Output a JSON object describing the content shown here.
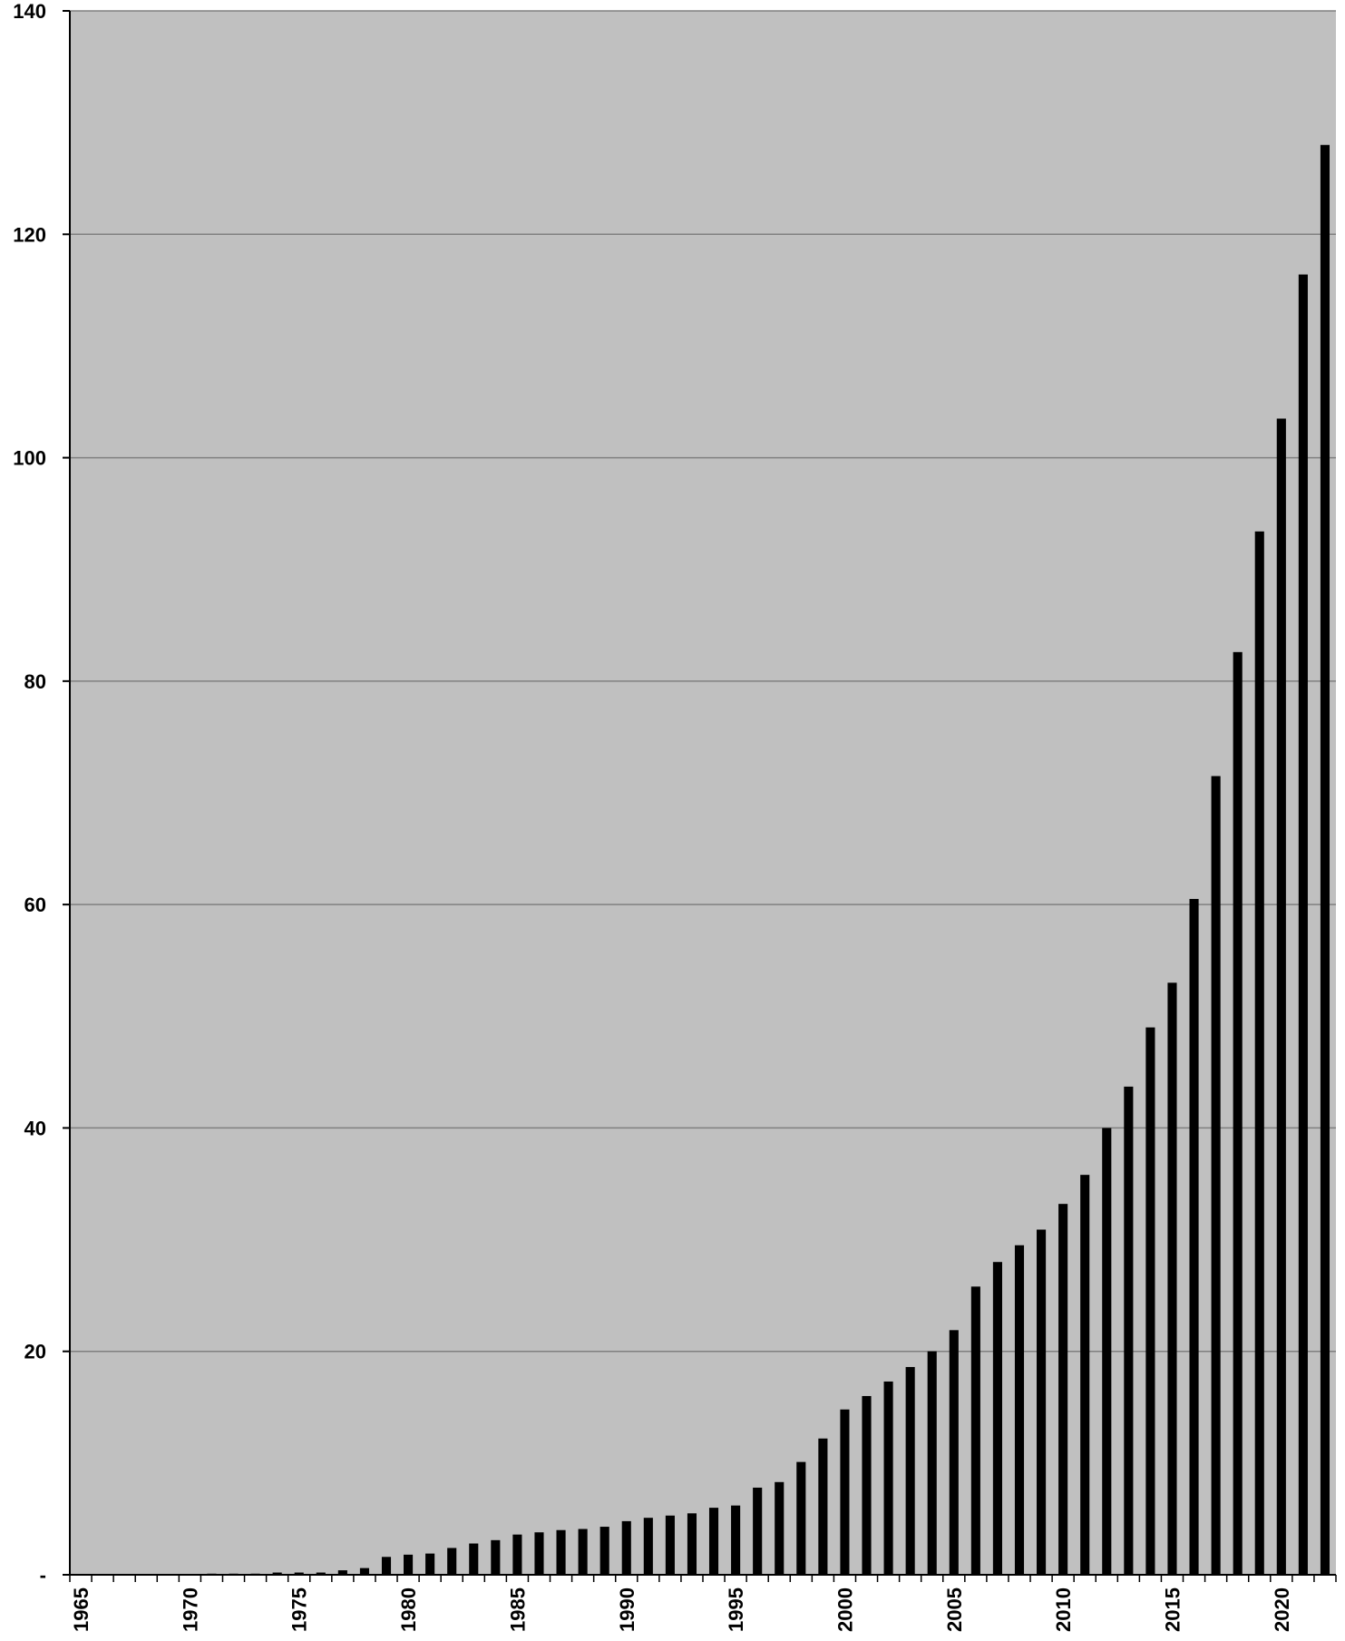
{
  "chart_data": {
    "type": "bar",
    "title": "",
    "xlabel": "",
    "ylabel": "",
    "ylim": [
      0,
      140
    ],
    "yticks": [
      0,
      20,
      40,
      60,
      80,
      100,
      120,
      140
    ],
    "ytick_labels": [
      "-",
      "20",
      "40",
      "60",
      "80",
      "100",
      "120",
      "140"
    ],
    "xtick_labels": [
      "1965",
      "1970",
      "1975",
      "1980",
      "1985",
      "1990",
      "1995",
      "2000",
      "2005",
      "2010",
      "2015",
      "2020"
    ],
    "grid": true,
    "legend": "none",
    "colors": {
      "bar": "#000000",
      "plot_background": "#c0c0c0",
      "gridline": "#808080"
    },
    "categories": [
      1965,
      1966,
      1967,
      1968,
      1969,
      1970,
      1971,
      1972,
      1973,
      1974,
      1975,
      1976,
      1977,
      1978,
      1979,
      1980,
      1981,
      1982,
      1983,
      1984,
      1985,
      1986,
      1987,
      1988,
      1989,
      1990,
      1991,
      1992,
      1993,
      1994,
      1995,
      1996,
      1997,
      1998,
      1999,
      2000,
      2001,
      2002,
      2003,
      2004,
      2005,
      2006,
      2007,
      2008,
      2009,
      2010,
      2011,
      2012,
      2013,
      2014,
      2015,
      2016,
      2017,
      2018,
      2019,
      2020,
      2021,
      2022
    ],
    "values": [
      0,
      0,
      0,
      0,
      0,
      0,
      0.1,
      0.1,
      0.1,
      0.2,
      0.2,
      0.2,
      0.4,
      0.6,
      1.6,
      1.8,
      1.9,
      2.4,
      2.8,
      3.1,
      3.6,
      3.8,
      4.0,
      4.1,
      4.3,
      4.8,
      5.1,
      5.3,
      5.5,
      6.0,
      6.2,
      7.8,
      8.3,
      10.1,
      12.2,
      14.8,
      16.0,
      17.3,
      18.6,
      20.0,
      21.9,
      25.8,
      28.0,
      29.5,
      30.9,
      33.2,
      35.8,
      40.0,
      43.7,
      49.0,
      53.0,
      60.5,
      71.5,
      82.6,
      93.4,
      103.5,
      116.4,
      128.0
    ]
  }
}
